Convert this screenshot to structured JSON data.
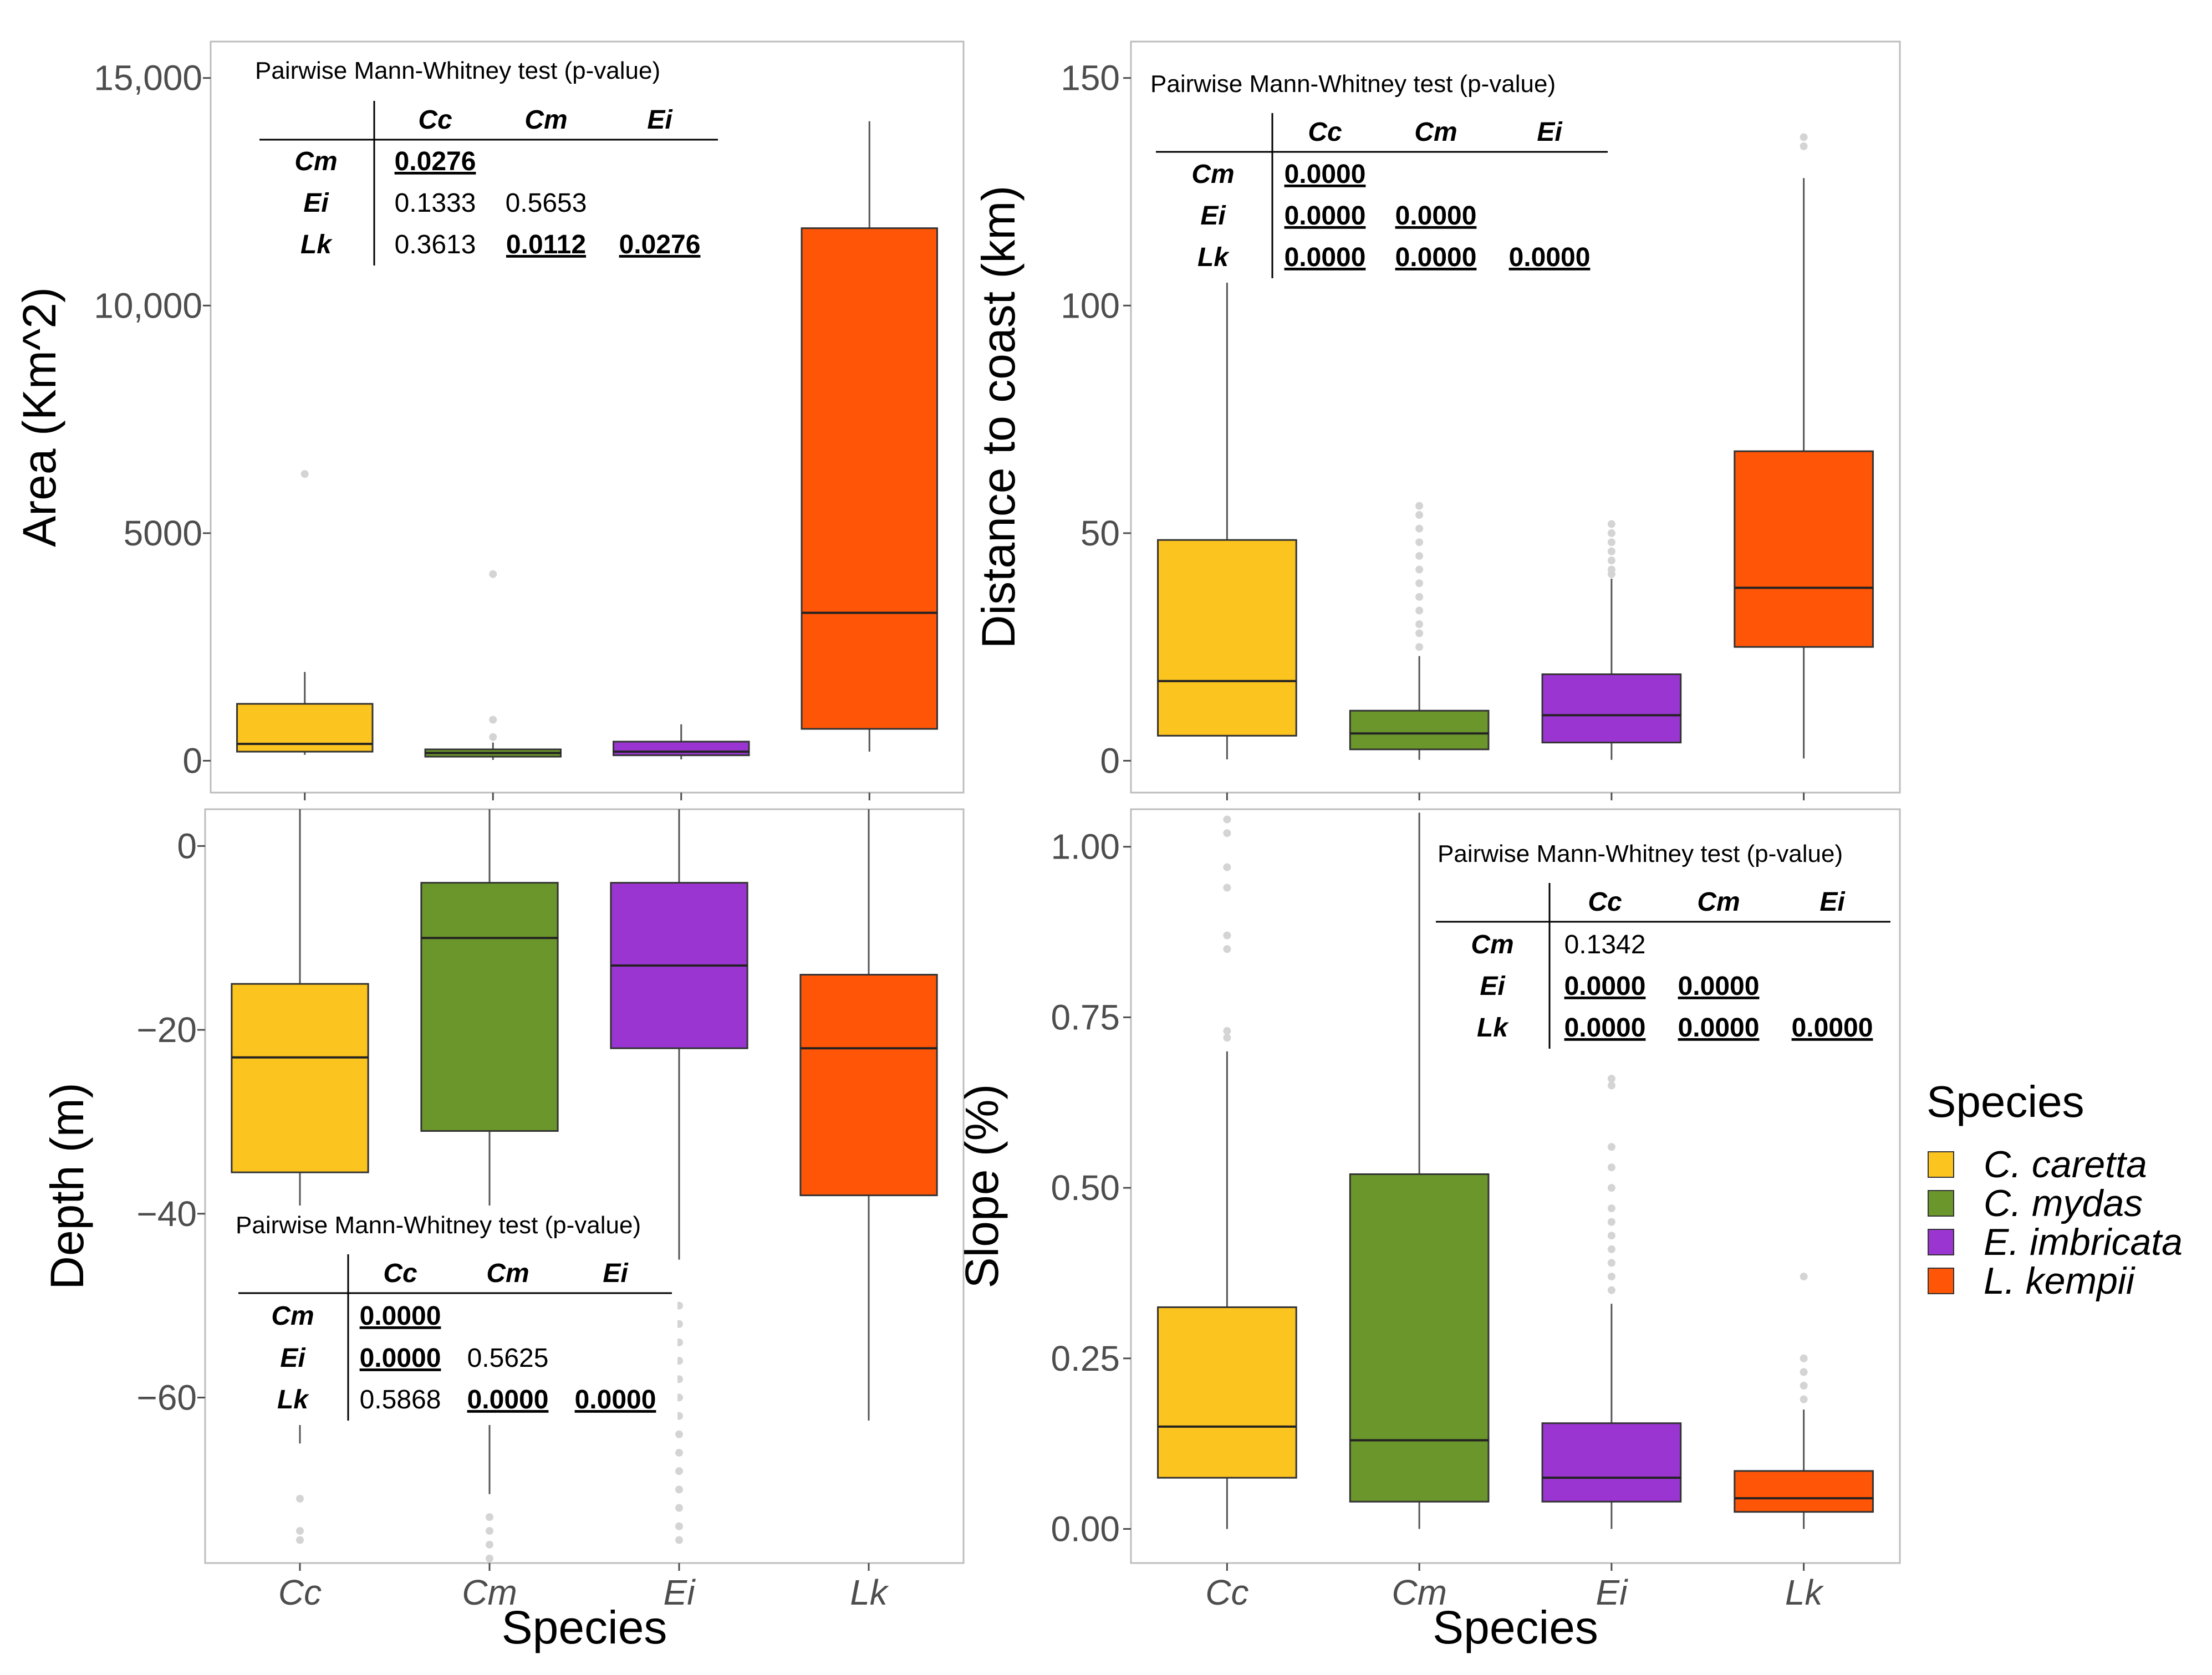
{
  "colors": {
    "Cc": "#FCC41F",
    "Cm": "#6B962B",
    "Ei": "#9A35D2",
    "Lk": "#FF5507",
    "whisker": "#555555",
    "outlier": "#d4d4d4",
    "panel_border": "#bdbdbd"
  },
  "legend": {
    "title": "Species",
    "items": [
      {
        "key": "Cc",
        "label": "C. caretta"
      },
      {
        "key": "Cm",
        "label": "C. mydas"
      },
      {
        "key": "Ei",
        "label": "E. imbricata"
      },
      {
        "key": "Lk",
        "label": "L. kempii"
      }
    ]
  },
  "chart_data": [
    {
      "id": "area",
      "type": "box",
      "ylabel": "Area (Km^2)",
      "xlabel": "",
      "categories": [
        "Cc",
        "Cm",
        "Ei",
        "Lk"
      ],
      "ylim": [
        -700,
        15800
      ],
      "yticks": [
        0,
        5000,
        10000,
        15000
      ],
      "ytick_labels": [
        "0",
        "5000",
        "10,000",
        "15,000"
      ],
      "boxes": [
        {
          "cat": "Cc",
          "min": 130,
          "q1": 200,
          "median": 370,
          "q3": 1250,
          "max": 1950,
          "outliers": [
            6300
          ]
        },
        {
          "cat": "Cm",
          "min": 20,
          "q1": 90,
          "median": 170,
          "q3": 250,
          "max": 400,
          "outliers": [
            520,
            900,
            4100
          ]
        },
        {
          "cat": "Ei",
          "min": 30,
          "q1": 120,
          "median": 200,
          "q3": 420,
          "max": 800,
          "outliers": []
        },
        {
          "cat": "Lk",
          "min": 200,
          "q1": 700,
          "median": 3250,
          "q3": 11700,
          "max": 14050,
          "outliers": []
        }
      ],
      "table": {
        "title": "Pairwise Mann-Whitney test (p-value)",
        "col_headers": [
          "Cc",
          "Cm",
          "Ei"
        ],
        "rows": [
          {
            "head": "Cm",
            "cells": [
              {
                "v": "0.0276",
                "sig": true
              }
            ]
          },
          {
            "head": "Ei",
            "cells": [
              {
                "v": "0.1333",
                "sig": false
              },
              {
                "v": "0.5653",
                "sig": false
              }
            ]
          },
          {
            "head": "Lk",
            "cells": [
              {
                "v": "0.3613",
                "sig": false
              },
              {
                "v": "0.0112",
                "sig": true
              },
              {
                "v": "0.0276",
                "sig": true
              }
            ]
          }
        ]
      }
    },
    {
      "id": "distance",
      "type": "box",
      "ylabel": "Distance to coast (km)",
      "xlabel": "",
      "categories": [
        "Cc",
        "Cm",
        "Ei",
        "Lk"
      ],
      "ylim": [
        -7,
        158
      ],
      "yticks": [
        0,
        50,
        100,
        150
      ],
      "ytick_labels": [
        "0",
        "50",
        "100",
        "150"
      ],
      "boxes": [
        {
          "cat": "Cc",
          "min": 0.3,
          "q1": 5.5,
          "median": 17.5,
          "q3": 48.5,
          "max": 106,
          "outliers": []
        },
        {
          "cat": "Cm",
          "min": 0.2,
          "q1": 2.5,
          "median": 6,
          "q3": 11,
          "max": 23,
          "outliers": [
            25,
            28,
            30,
            33,
            36,
            39,
            42,
            45,
            48,
            51,
            54,
            56
          ]
        },
        {
          "cat": "Ei",
          "min": 0.2,
          "q1": 4,
          "median": 10,
          "q3": 19,
          "max": 40,
          "outliers": [
            41,
            42,
            44,
            46,
            48,
            50,
            52
          ]
        },
        {
          "cat": "Lk",
          "min": 0.5,
          "q1": 25,
          "median": 38,
          "q3": 68,
          "max": 128,
          "outliers": [
            135,
            137
          ]
        }
      ],
      "table": {
        "title": "Pairwise Mann-Whitney test (p-value)",
        "col_headers": [
          "Cc",
          "Cm",
          "Ei"
        ],
        "rows": [
          {
            "head": "Cm",
            "cells": [
              {
                "v": "0.0000",
                "sig": true
              }
            ]
          },
          {
            "head": "Ei",
            "cells": [
              {
                "v": "0.0000",
                "sig": true
              },
              {
                "v": "0.0000",
                "sig": true
              }
            ]
          },
          {
            "head": "Lk",
            "cells": [
              {
                "v": "0.0000",
                "sig": true
              },
              {
                "v": "0.0000",
                "sig": true
              },
              {
                "v": "0.0000",
                "sig": true
              }
            ]
          }
        ]
      }
    },
    {
      "id": "depth",
      "type": "box",
      "ylabel": "Depth (m)",
      "xlabel": "Species",
      "categories": [
        "Cc",
        "Cm",
        "Ei",
        "Lk"
      ],
      "ylim": [
        -78,
        4
      ],
      "yticks": [
        0,
        -20,
        -40,
        -60
      ],
      "ytick_labels": [
        "0",
        "−20",
        "−40",
        "−60"
      ],
      "boxes": [
        {
          "cat": "Cc",
          "min": -65,
          "q1": -35.5,
          "median": -23,
          "q3": -15,
          "max": 4,
          "outliers": [
            -71,
            -74.5,
            -75.5
          ]
        },
        {
          "cat": "Cm",
          "min": -70.5,
          "q1": -31,
          "median": -10,
          "q3": -4,
          "max": 4,
          "outliers": [
            -73,
            -74.5,
            -76,
            -77.5
          ]
        },
        {
          "cat": "Ei",
          "min": -45,
          "q1": -22,
          "median": -13,
          "q3": -4,
          "max": 4,
          "outliers": [
            -50,
            -52,
            -54,
            -56,
            -58,
            -60,
            -62,
            -64,
            -66,
            -68,
            -70,
            -72,
            -74,
            -75.5
          ]
        },
        {
          "cat": "Lk",
          "min": -62.5,
          "q1": -38,
          "median": -22,
          "q3": -14,
          "max": 4,
          "outliers": []
        }
      ],
      "table": {
        "title": "Pairwise Mann-Whitney test (p-value)",
        "col_headers": [
          "Cc",
          "Cm",
          "Ei"
        ],
        "rows": [
          {
            "head": "Cm",
            "cells": [
              {
                "v": "0.0000",
                "sig": true
              }
            ]
          },
          {
            "head": "Ei",
            "cells": [
              {
                "v": "0.0000",
                "sig": true
              },
              {
                "v": "0.5625",
                "sig": false
              }
            ]
          },
          {
            "head": "Lk",
            "cells": [
              {
                "v": "0.5868",
                "sig": false
              },
              {
                "v": "0.0000",
                "sig": true
              },
              {
                "v": "0.0000",
                "sig": true
              }
            ]
          }
        ]
      }
    },
    {
      "id": "slope",
      "type": "box",
      "ylabel": "Slope (%)",
      "xlabel": "Species",
      "categories": [
        "Cc",
        "Cm",
        "Ei",
        "Lk"
      ],
      "ylim": [
        -0.05,
        1.055
      ],
      "yticks": [
        0,
        0.25,
        0.5,
        0.75,
        1.0
      ],
      "ytick_labels": [
        "0.00",
        "0.25",
        "0.50",
        "0.75",
        "1.00"
      ],
      "boxes": [
        {
          "cat": "Cc",
          "min": 0.0,
          "q1": 0.075,
          "median": 0.15,
          "q3": 0.325,
          "max": 0.7,
          "outliers": [
            0.72,
            0.73,
            0.85,
            0.87,
            0.94,
            0.97,
            1.02,
            1.04
          ]
        },
        {
          "cat": "Cm",
          "min": 0.0,
          "q1": 0.04,
          "median": 0.13,
          "q3": 0.52,
          "max": 1.05,
          "outliers": []
        },
        {
          "cat": "Ei",
          "min": 0.0,
          "q1": 0.04,
          "median": 0.075,
          "q3": 0.155,
          "max": 0.33,
          "outliers": [
            0.35,
            0.37,
            0.39,
            0.41,
            0.43,
            0.45,
            0.47,
            0.5,
            0.53,
            0.56,
            0.65,
            0.66
          ]
        },
        {
          "cat": "Lk",
          "min": 0.0,
          "q1": 0.025,
          "median": 0.045,
          "q3": 0.085,
          "max": 0.175,
          "outliers": [
            0.19,
            0.21,
            0.23,
            0.25,
            0.37
          ]
        }
      ],
      "table": {
        "title": "Pairwise Mann-Whitney test (p-value)",
        "col_headers": [
          "Cc",
          "Cm",
          "Ei"
        ],
        "rows": [
          {
            "head": "Cm",
            "cells": [
              {
                "v": "0.1342",
                "sig": false
              }
            ]
          },
          {
            "head": "Ei",
            "cells": [
              {
                "v": "0.0000",
                "sig": true
              },
              {
                "v": "0.0000",
                "sig": true
              }
            ]
          },
          {
            "head": "Lk",
            "cells": [
              {
                "v": "0.0000",
                "sig": true
              },
              {
                "v": "0.0000",
                "sig": true
              },
              {
                "v": "0.0000",
                "sig": true
              }
            ]
          }
        ]
      }
    }
  ]
}
